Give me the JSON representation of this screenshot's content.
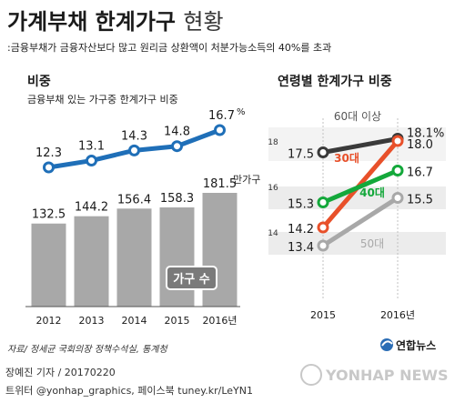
{
  "header": {
    "title_main": "가계부채 한계가구",
    "title_sub": "현황",
    "definition": ":금융부채가 금융자산보다 많고 원리금 상환액이 처분가능소득의 40%를 초과"
  },
  "left_panel": {
    "section_title": "비중",
    "section_subtitle": "금융부채 있는 가구중 한계가구 비중",
    "bar_badge": "가구 수",
    "bar_unit": "만가구",
    "line_unit": "%"
  },
  "right_panel": {
    "title": "연령별 한계가구 비중"
  },
  "chart_data": [
    {
      "type": "bar+line",
      "title": "비중",
      "subtitle": "금융부채 있는 가구중 한계가구 비중",
      "categories": [
        "2012",
        "2013",
        "2014",
        "2015",
        "2016년"
      ],
      "bar_series": {
        "name": "가구 수",
        "unit": "만가구",
        "values": [
          132.5,
          144.2,
          156.4,
          158.3,
          181.5
        ]
      },
      "line_series": {
        "unit": "%",
        "values": [
          12.3,
          13.1,
          14.3,
          14.8,
          16.7
        ]
      },
      "labels": {
        "bar": [
          "132.5",
          "144.2",
          "156.4",
          "158.3",
          "181.5"
        ],
        "line": [
          "12.3",
          "13.1",
          "14.3",
          "14.8",
          "16.7"
        ]
      }
    },
    {
      "type": "line",
      "title": "연령별 한계가구 비중",
      "x": [
        "2015",
        "2016년"
      ],
      "yticks": [
        "18",
        "16",
        "14"
      ],
      "ylim": [
        13,
        18.5
      ],
      "series": [
        {
          "name": "60대 이상",
          "values": [
            17.5,
            18.1
          ],
          "labels": [
            "17.5",
            "18.1%"
          ],
          "color": "#3a3a3a"
        },
        {
          "name": "30대",
          "values": [
            14.2,
            18.0
          ],
          "labels": [
            "14.2",
            "18.0"
          ],
          "color": "#e8502a"
        },
        {
          "name": "40대",
          "values": [
            15.3,
            16.7
          ],
          "labels": [
            "15.3",
            "16.7"
          ],
          "color": "#14a83b"
        },
        {
          "name": "50대",
          "values": [
            13.4,
            15.5
          ],
          "labels": [
            "13.4",
            "15.5"
          ],
          "color": "#a8a8a8"
        }
      ]
    }
  ],
  "footer": {
    "source": "자료/ 정세균 국회의장 정책수석실, 통계청",
    "logo_text": "연합뉴스",
    "byline": "장예진 기자 / 20170220",
    "social": "트위터 @yonhap_graphics, 페이스북 tuney.kr/LeYN1",
    "watermark": "YONHAP NEWS"
  },
  "colors": {
    "bar": "#a8a8a8",
    "line": "#1f6fb8",
    "band": "#ebebeb",
    "badge": "#7a7a7a"
  }
}
